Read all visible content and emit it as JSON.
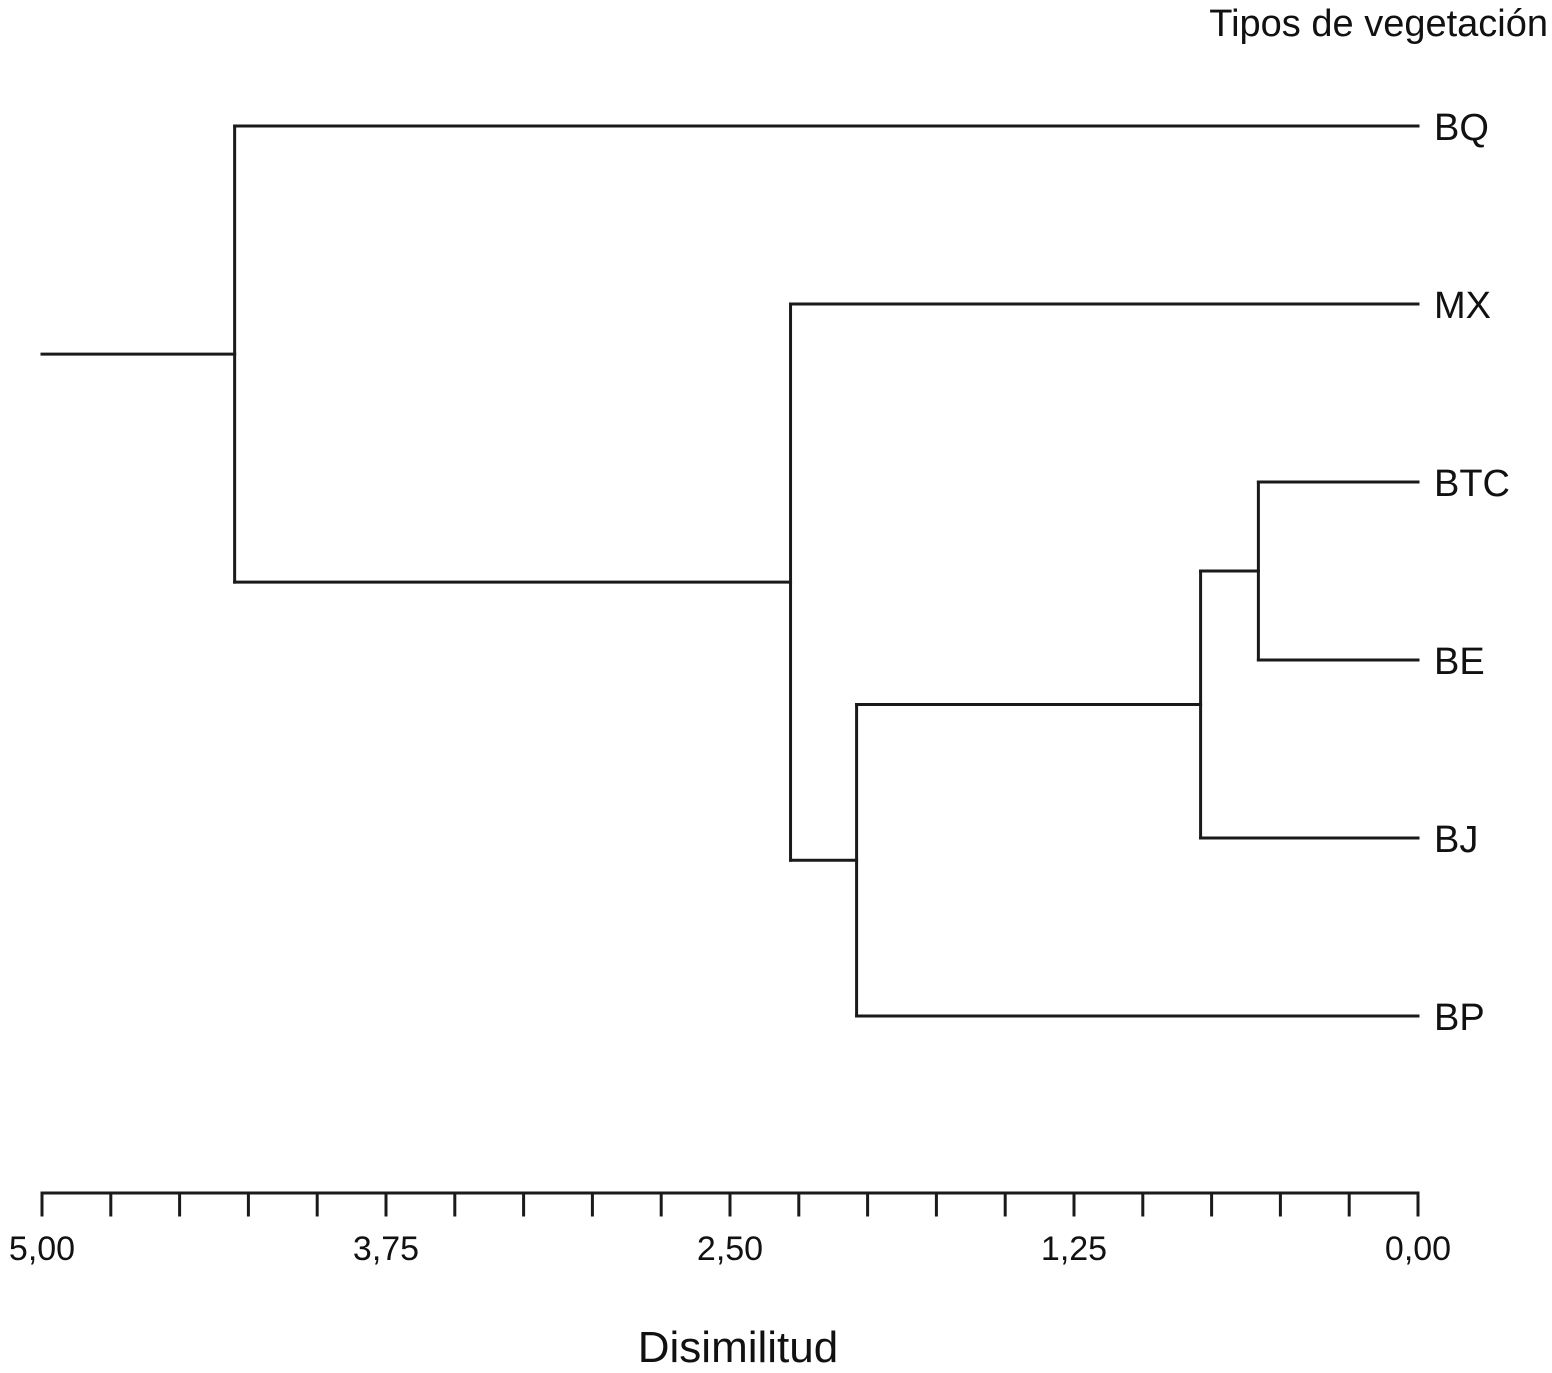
{
  "chart_data": {
    "type": "dendrogram",
    "title": "",
    "legend_title": "Tipos de vegetación",
    "xlabel": "Disimilitud",
    "xlim": [
      5.0,
      0.0
    ],
    "x_reversed": true,
    "x_tick_labels": [
      "5,00",
      "3,75",
      "2,50",
      "1,25",
      "0,00"
    ],
    "x_tick_values": [
      5.0,
      3.75,
      2.5,
      1.25,
      0.0
    ],
    "minor_tick_step": 0.25,
    "leaves": [
      "BQ",
      "MX",
      "BTC",
      "BE",
      "BJ",
      "BP"
    ],
    "merges": [
      {
        "id": "m1",
        "children": [
          "BTC",
          "BE"
        ],
        "height": 0.58
      },
      {
        "id": "m2",
        "children": [
          "m1",
          "BJ"
        ],
        "height": 0.79
      },
      {
        "id": "m3",
        "children": [
          "m2",
          "BP"
        ],
        "height": 2.04
      },
      {
        "id": "m4",
        "children": [
          "MX",
          "m3"
        ],
        "height": 2.28
      },
      {
        "id": "m5",
        "children": [
          "BQ",
          "m4"
        ],
        "height": 4.3
      }
    ],
    "root_stub_to": 5.0,
    "grid": false,
    "line_color": "#1a1a1a"
  }
}
